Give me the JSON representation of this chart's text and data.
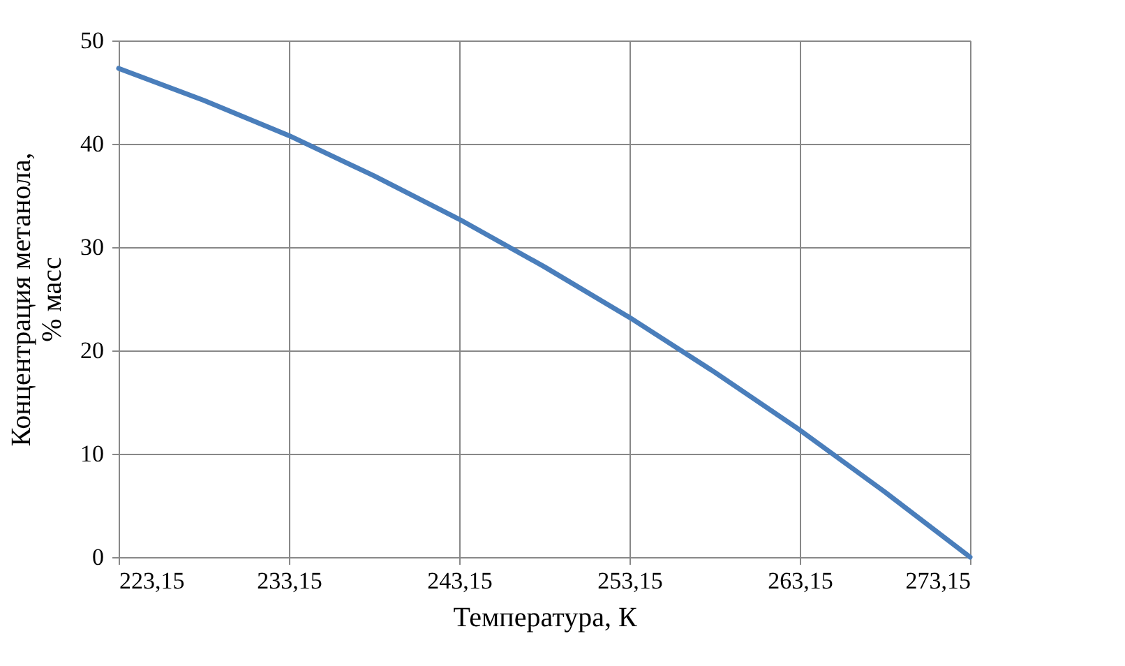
{
  "chart_data": {
    "type": "line",
    "xlabel": "Температура, К",
    "ylabel": "Концентрация метанола,\n% масс",
    "x": [
      223.15,
      228.15,
      233.15,
      238.15,
      243.15,
      248.15,
      253.15,
      258.15,
      263.15,
      268.15,
      273.15
    ],
    "series": [
      {
        "color": "#4a7ebb",
        "values": [
          47.3,
          44.2,
          40.8,
          36.9,
          32.7,
          28.1,
          23.2,
          17.9,
          12.3,
          6.3,
          0
        ]
      }
    ],
    "xlim": [
      223.15,
      273.15
    ],
    "xticks": [
      {
        "value": 223.15,
        "label": "223,15"
      },
      {
        "value": 233.15,
        "label": "233,15"
      },
      {
        "value": 243.15,
        "label": "243,15"
      },
      {
        "value": 253.15,
        "label": "253,15"
      },
      {
        "value": 263.15,
        "label": "263,15"
      },
      {
        "value": 273.15,
        "label": "273,15"
      }
    ],
    "ylim": [
      0,
      50
    ],
    "yticks": [
      0,
      10,
      20,
      30,
      40,
      50
    ],
    "grid": true,
    "line_style": "solid",
    "marker": "none"
  }
}
